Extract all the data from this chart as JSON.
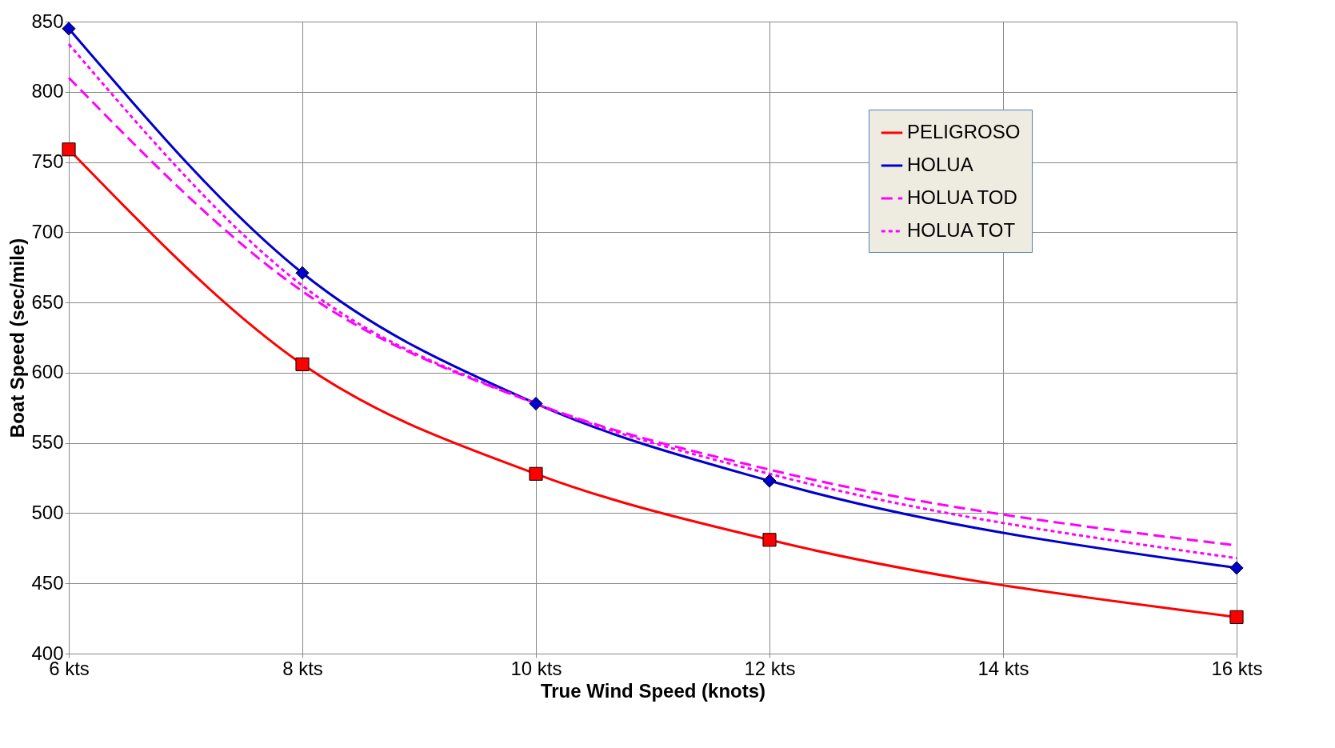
{
  "chart_data": {
    "type": "line",
    "xlabel": "True Wind Speed (knots)",
    "ylabel": "Boat Speed (sec/mile)",
    "xlim": [
      6,
      16
    ],
    "xticks": [
      {
        "value": 6,
        "label": "6 kts"
      },
      {
        "value": 8,
        "label": "8 kts"
      },
      {
        "value": 10,
        "label": "10 kts"
      },
      {
        "value": 12,
        "label": "12 kts"
      },
      {
        "value": 14,
        "label": "14 kts"
      },
      {
        "value": 16,
        "label": "16 kts"
      }
    ],
    "ylim": [
      400,
      850
    ],
    "yticks": [
      400,
      450,
      500,
      550,
      600,
      650,
      700,
      750,
      800,
      850
    ],
    "x": [
      6,
      8,
      10,
      12,
      16
    ],
    "grid": true,
    "legend": "top right",
    "series": [
      {
        "name": "PELIGROSO",
        "color": "#ff0000",
        "marker": "square",
        "line_style": "solid",
        "values": [
          759,
          606,
          528,
          481,
          426
        ]
      },
      {
        "name": "HOLUA",
        "color": "#0000cc",
        "marker": "diamond",
        "line_style": "solid",
        "values": [
          845,
          671,
          578,
          523,
          461
        ]
      },
      {
        "name": "HOLUA TOD",
        "color": "#ff00ff",
        "marker": "none",
        "line_style": "dashed",
        "values": [
          810,
          658,
          578,
          531,
          477
        ]
      },
      {
        "name": "HOLUA TOT",
        "color": "#ff00ff",
        "marker": "none",
        "line_style": "dotted",
        "values": [
          834,
          662,
          578,
          528,
          468
        ]
      }
    ]
  }
}
